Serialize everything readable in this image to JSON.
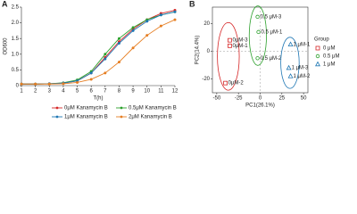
{
  "chart_data": [
    {
      "type": "line",
      "panel": "A",
      "x_label": "T(h)",
      "y_label": "OD600",
      "x": [
        1,
        2,
        3,
        4,
        5,
        6,
        7,
        8,
        9,
        10,
        11,
        12
      ],
      "xlim": [
        1,
        12
      ],
      "xticks": [
        1,
        2,
        3,
        4,
        5,
        6,
        7,
        8,
        9,
        10,
        11,
        12
      ],
      "ylim": [
        0,
        2.5
      ],
      "yticks": [
        0,
        {
          "value": 0.5,
          "label": "0.5"
        },
        {
          "value": 1,
          "label": "1.0"
        },
        {
          "value": 1.5,
          "label": "1.5"
        },
        {
          "value": 2,
          "label": "2.0"
        },
        {
          "value": 2.5,
          "label": "2.5"
        }
      ],
      "series": [
        {
          "name": "0μM Kanamycin B",
          "color": "#d62728",
          "values": [
            0.05,
            0.05,
            0.06,
            0.08,
            0.15,
            0.4,
            0.9,
            1.4,
            1.8,
            2.1,
            2.3,
            2.4
          ]
        },
        {
          "name": "0.5μM Kanamycin B",
          "color": "#2ca02c",
          "values": [
            0.05,
            0.05,
            0.06,
            0.09,
            0.18,
            0.45,
            1.0,
            1.5,
            1.85,
            2.1,
            2.25,
            2.35
          ]
        },
        {
          "name": "1μM Kanamycin B",
          "color": "#1f77b4",
          "values": [
            0.05,
            0.05,
            0.06,
            0.08,
            0.15,
            0.4,
            0.85,
            1.35,
            1.75,
            2.05,
            2.25,
            2.35
          ]
        },
        {
          "name": "2μM Kanamycin B",
          "color": "#e67e22",
          "values": [
            0.05,
            0.05,
            0.05,
            0.06,
            0.1,
            0.2,
            0.4,
            0.75,
            1.2,
            1.6,
            1.9,
            2.1
          ]
        }
      ]
    },
    {
      "type": "scatter",
      "panel": "B",
      "x_label": "PC1(26.1%)",
      "y_label": "PC2(14.4%)",
      "legend_title": "Group",
      "xlim": [
        -55,
        55
      ],
      "xticks": [
        -50,
        -25,
        0,
        25,
        50
      ],
      "ylim": [
        -30,
        32
      ],
      "yticks": [
        -20,
        0,
        20
      ],
      "series": [
        {
          "name": "0 μM",
          "color": "#d62728",
          "marker": "square",
          "x": [
            -35,
            -40,
            -35
          ],
          "values": [
            4,
            -23,
            8
          ],
          "labels": [
            "0μM-1",
            "0μM-2",
            "0μM-3"
          ]
        },
        {
          "name": "0.5 μM",
          "color": "#2ca02c",
          "marker": "circle",
          "x": [
            -2,
            -3,
            -3
          ],
          "values": [
            14,
            -5,
            25
          ],
          "labels": [
            "0.5 μM-1",
            "0.5 μM-2",
            "0.5 μM-3"
          ]
        },
        {
          "name": "1 μM",
          "color": "#1f77b4",
          "marker": "triangle",
          "x": [
            35,
            35,
            33
          ],
          "values": [
            5,
            -18,
            -12
          ],
          "labels": [
            "1 μM-1",
            "1 μM-2",
            "1 μM-3"
          ]
        }
      ]
    }
  ]
}
